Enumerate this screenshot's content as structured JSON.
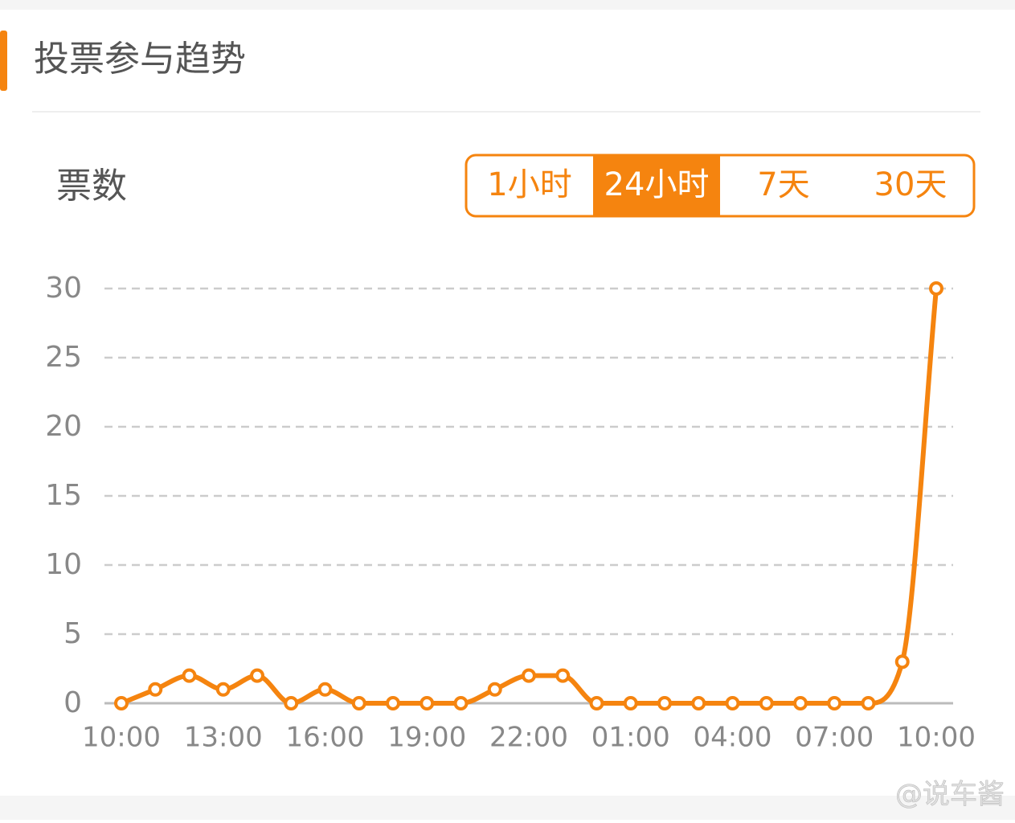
{
  "header": {
    "title": "投票参与趋势"
  },
  "controls": {
    "y_label": "票数",
    "options": [
      "1小时",
      "24小时",
      "7天",
      "30天"
    ],
    "selected": 1
  },
  "watermark": "@说车酱",
  "chart_data": {
    "type": "line",
    "categories": [
      "10:00",
      null,
      null,
      "13:00",
      null,
      null,
      "16:00",
      null,
      null,
      "19:00",
      null,
      null,
      "22:00",
      null,
      null,
      "01:00",
      null,
      null,
      "04:00",
      null,
      null,
      "07:00",
      null,
      null,
      "10:00"
    ],
    "series": [
      {
        "name": "票数",
        "color": "#f5840f",
        "values": [
          0,
          1,
          2,
          1,
          2,
          0,
          1,
          0,
          0,
          0,
          0,
          1,
          2,
          2,
          0,
          0,
          0,
          0,
          0,
          0,
          0,
          0,
          0,
          3,
          30
        ]
      }
    ],
    "ylim": [
      0,
      30
    ],
    "yticks": [
      0,
      5,
      10,
      15,
      20,
      25,
      30
    ],
    "grid": true
  }
}
